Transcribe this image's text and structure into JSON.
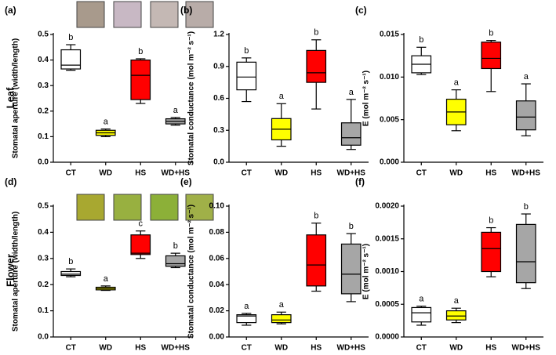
{
  "row_labels": [
    "Leaf",
    "Flower"
  ],
  "chart_data": [
    {
      "type": "box",
      "panel": "(a)",
      "ylabel": "Stomatal aperture (width/length)",
      "categories": [
        "CT",
        "WD",
        "HS",
        "WD+HS"
      ],
      "colors": [
        "#ffffff",
        "#ffff00",
        "#ff0000",
        "#a6a6a6"
      ],
      "ylim": [
        0,
        0.5
      ],
      "yticks": [
        {
          "value": 0,
          "label": "0.0"
        },
        0.1,
        0.2,
        0.3,
        0.4,
        0.5
      ],
      "letters": [
        "b",
        "a",
        "b",
        "a"
      ],
      "boxes": [
        {
          "min": 0.36,
          "q1": 0.365,
          "median": 0.38,
          "q3": 0.44,
          "max": 0.46
        },
        {
          "min": 0.1,
          "q1": 0.105,
          "median": 0.115,
          "q3": 0.125,
          "max": 0.13
        },
        {
          "min": 0.23,
          "q1": 0.245,
          "median": 0.34,
          "q3": 0.4,
          "max": 0.405
        },
        {
          "min": 0.145,
          "q1": 0.15,
          "median": 0.16,
          "q3": 0.17,
          "max": 0.175
        }
      ]
    },
    {
      "type": "box",
      "panel": "(b)",
      "ylabel": "Stomatal conductance (mol m⁻² s⁻¹)",
      "categories": [
        "CT",
        "WD",
        "HS",
        "WD+HS"
      ],
      "colors": [
        "#ffffff",
        "#ffff00",
        "#ff0000",
        "#a6a6a6"
      ],
      "ylim": [
        0,
        1.2
      ],
      "yticks": [
        {
          "value": 0,
          "label": "0.0"
        },
        0.3,
        0.6,
        0.9,
        1.2
      ],
      "letters": [
        "b",
        "a",
        "b",
        "a"
      ],
      "boxes": [
        {
          "min": 0.57,
          "q1": 0.68,
          "median": 0.8,
          "q3": 0.94,
          "max": 0.98
        },
        {
          "min": 0.15,
          "q1": 0.21,
          "median": 0.31,
          "q3": 0.41,
          "max": 0.55
        },
        {
          "min": 0.5,
          "q1": 0.75,
          "median": 0.84,
          "q3": 1.05,
          "max": 1.15
        },
        {
          "min": 0.12,
          "q1": 0.16,
          "median": 0.23,
          "q3": 0.37,
          "max": 0.59
        }
      ]
    },
    {
      "type": "box",
      "panel": "(c)",
      "ylabel": "E (mol m⁻² s⁻¹)",
      "categories": [
        "CT",
        "WD",
        "HS",
        "WD+HS"
      ],
      "colors": [
        "#ffffff",
        "#ffff00",
        "#ff0000",
        "#a6a6a6"
      ],
      "ylim": [
        0,
        0.015
      ],
      "yticks": [
        {
          "value": 0,
          "label": "0.000"
        },
        0.005,
        {
          "value": 0.01,
          "label": "0.010"
        },
        0.015
      ],
      "letters": [
        "b",
        "a",
        "b",
        "a"
      ],
      "boxes": [
        {
          "min": 0.0103,
          "q1": 0.0105,
          "median": 0.0115,
          "q3": 0.0125,
          "max": 0.0135
        },
        {
          "min": 0.0037,
          "q1": 0.0044,
          "median": 0.0059,
          "q3": 0.0074,
          "max": 0.0085
        },
        {
          "min": 0.0083,
          "q1": 0.011,
          "median": 0.0122,
          "q3": 0.0141,
          "max": 0.0143
        },
        {
          "min": 0.0031,
          "q1": 0.0038,
          "median": 0.0053,
          "q3": 0.0072,
          "max": 0.0092
        }
      ]
    },
    {
      "type": "box",
      "panel": "(d)",
      "ylabel": "Stomatal aperture (width/length)",
      "categories": [
        "CT",
        "WD",
        "HS",
        "WD+HS"
      ],
      "colors": [
        "#ffffff",
        "#ffff00",
        "#ff0000",
        "#a6a6a6"
      ],
      "ylim": [
        0,
        0.5
      ],
      "yticks": [
        {
          "value": 0,
          "label": "0.0"
        },
        0.1,
        0.2,
        0.3,
        0.4,
        0.5
      ],
      "letters": [
        "b",
        "a",
        "c",
        "b"
      ],
      "boxes": [
        {
          "min": 0.23,
          "q1": 0.235,
          "median": 0.24,
          "q3": 0.25,
          "max": 0.26
        },
        {
          "min": 0.178,
          "q1": 0.18,
          "median": 0.185,
          "q3": 0.19,
          "max": 0.195
        },
        {
          "min": 0.3,
          "q1": 0.315,
          "median": 0.32,
          "q3": 0.39,
          "max": 0.405
        },
        {
          "min": 0.265,
          "q1": 0.27,
          "median": 0.28,
          "q3": 0.31,
          "max": 0.32
        }
      ]
    },
    {
      "type": "box",
      "panel": "(e)",
      "ylabel": "Stomatal conductance (mol m⁻² s⁻¹)",
      "categories": [
        "CT",
        "WD",
        "HS",
        "WD+HS"
      ],
      "colors": [
        "#ffffff",
        "#ffff00",
        "#ff0000",
        "#a6a6a6"
      ],
      "ylim": [
        0,
        0.1
      ],
      "yticks": [
        {
          "value": 0,
          "label": "0.00"
        },
        0.02,
        0.04,
        0.06,
        0.08,
        {
          "value": 0.1,
          "label": "0.10"
        }
      ],
      "letters": [
        "a",
        "a",
        "b",
        "b"
      ],
      "boxes": [
        {
          "min": 0.009,
          "q1": 0.011,
          "median": 0.016,
          "q3": 0.017,
          "max": 0.018
        },
        {
          "min": 0.01,
          "q1": 0.011,
          "median": 0.013,
          "q3": 0.017,
          "max": 0.019
        },
        {
          "min": 0.035,
          "q1": 0.039,
          "median": 0.055,
          "q3": 0.078,
          "max": 0.087
        },
        {
          "min": 0.027,
          "q1": 0.033,
          "median": 0.048,
          "q3": 0.071,
          "max": 0.079
        }
      ]
    },
    {
      "type": "box",
      "panel": "(f)",
      "ylabel": "E (mol m⁻² s⁻¹)",
      "categories": [
        "CT",
        "WD",
        "HS",
        "WD+HS"
      ],
      "colors": [
        "#ffffff",
        "#ffff00",
        "#ff0000",
        "#a6a6a6"
      ],
      "ylim": [
        0,
        0.002
      ],
      "yticks": [
        {
          "value": 0,
          "label": "0.0000"
        },
        0.0005,
        {
          "value": 0.001,
          "label": "0.0010"
        },
        0.0015,
        {
          "value": 0.002,
          "label": "0.0020"
        }
      ],
      "letters": [
        "a",
        "a",
        "b",
        "b"
      ],
      "boxes": [
        {
          "min": 0.00018,
          "q1": 0.00023,
          "median": 0.00037,
          "q3": 0.00045,
          "max": 0.00047
        },
        {
          "min": 0.00022,
          "q1": 0.00026,
          "median": 0.00032,
          "q3": 0.0004,
          "max": 0.00044
        },
        {
          "min": 0.00092,
          "q1": 0.001,
          "median": 0.00135,
          "q3": 0.0016,
          "max": 0.00167
        },
        {
          "min": 0.00074,
          "q1": 0.00083,
          "median": 0.00115,
          "q3": 0.00172,
          "max": 0.00188
        }
      ]
    }
  ]
}
